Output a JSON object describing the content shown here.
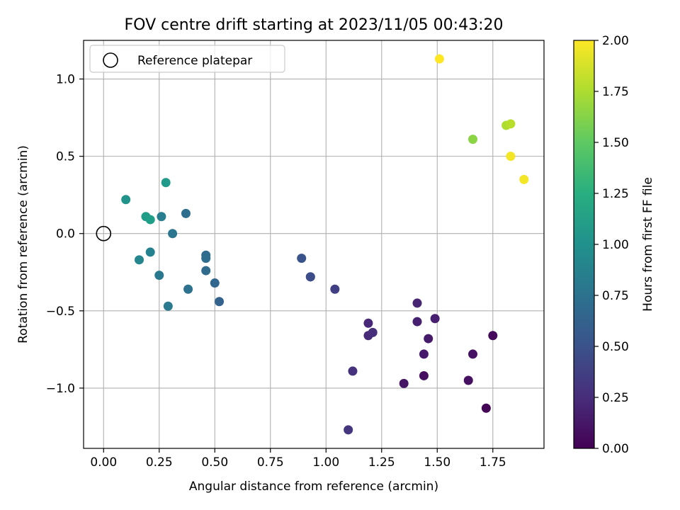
{
  "chart_data": {
    "type": "scatter",
    "title": "FOV centre drift starting at 2023/11/05 00:43:20",
    "xlabel": "Angular distance from reference (arcmin)",
    "ylabel": "Rotation from reference (arcmin)",
    "xlim": [
      -0.09,
      1.98
    ],
    "ylim": [
      -1.39,
      1.25
    ],
    "xticks": [
      0.0,
      0.25,
      0.5,
      0.75,
      1.0,
      1.25,
      1.5,
      1.75
    ],
    "xtick_labels": [
      "0.00",
      "0.25",
      "0.50",
      "0.75",
      "1.00",
      "1.25",
      "1.50",
      "1.75"
    ],
    "yticks": [
      -1.0,
      -0.5,
      0.0,
      0.5,
      1.0
    ],
    "ytick_labels": [
      "−1.0",
      "−0.5",
      "0.0",
      "0.5",
      "1.0"
    ],
    "grid": true,
    "legend": {
      "position": "top-left",
      "entries": [
        "Reference platepar"
      ]
    },
    "reference_point": {
      "x": 0.0,
      "y": 0.0
    },
    "colorbar": {
      "label": "Hours from first FF file",
      "colormap": "viridis",
      "range": [
        0.0,
        2.0
      ],
      "ticks": [
        0.0,
        0.25,
        0.5,
        0.75,
        1.0,
        1.25,
        1.5,
        1.75,
        2.0
      ],
      "tick_labels": [
        "0.00",
        "0.25",
        "0.50",
        "0.75",
        "1.00",
        "1.25",
        "1.50",
        "1.75",
        "2.00"
      ]
    },
    "points": [
      {
        "x": 1.72,
        "y": -1.13,
        "hours": 0.02
      },
      {
        "x": 1.75,
        "y": -0.66,
        "hours": 0.05
      },
      {
        "x": 1.44,
        "y": -0.92,
        "hours": 0.07
      },
      {
        "x": 1.64,
        "y": -0.95,
        "hours": 0.09
      },
      {
        "x": 1.66,
        "y": -0.78,
        "hours": 0.1
      },
      {
        "x": 1.35,
        "y": -0.97,
        "hours": 0.12
      },
      {
        "x": 1.44,
        "y": -0.78,
        "hours": 0.13
      },
      {
        "x": 1.46,
        "y": -0.68,
        "hours": 0.15
      },
      {
        "x": 1.49,
        "y": -0.55,
        "hours": 0.17
      },
      {
        "x": 1.41,
        "y": -0.57,
        "hours": 0.18
      },
      {
        "x": 1.41,
        "y": -0.45,
        "hours": 0.2
      },
      {
        "x": 1.19,
        "y": -0.58,
        "hours": 0.22
      },
      {
        "x": 1.19,
        "y": -0.66,
        "hours": 0.24
      },
      {
        "x": 1.21,
        "y": -0.64,
        "hours": 0.26
      },
      {
        "x": 1.12,
        "y": -0.89,
        "hours": 0.28
      },
      {
        "x": 1.1,
        "y": -1.27,
        "hours": 0.3
      },
      {
        "x": 1.04,
        "y": -0.36,
        "hours": 0.37
      },
      {
        "x": 0.93,
        "y": -0.28,
        "hours": 0.45
      },
      {
        "x": 0.93,
        "y": -0.28,
        "hours": 0.47
      },
      {
        "x": 0.89,
        "y": -0.16,
        "hours": 0.52
      },
      {
        "x": 0.52,
        "y": -0.44,
        "hours": 0.63
      },
      {
        "x": 0.5,
        "y": -0.32,
        "hours": 0.66
      },
      {
        "x": 0.46,
        "y": -0.24,
        "hours": 0.69
      },
      {
        "x": 0.46,
        "y": -0.14,
        "hours": 0.7
      },
      {
        "x": 0.46,
        "y": -0.16,
        "hours": 0.71
      },
      {
        "x": 0.37,
        "y": 0.13,
        "hours": 0.73
      },
      {
        "x": 0.38,
        "y": -0.36,
        "hours": 0.75
      },
      {
        "x": 0.31,
        "y": 0.0,
        "hours": 0.78
      },
      {
        "x": 0.25,
        "y": -0.27,
        "hours": 0.8
      },
      {
        "x": 0.29,
        "y": -0.47,
        "hours": 0.82
      },
      {
        "x": 0.26,
        "y": 0.11,
        "hours": 0.85
      },
      {
        "x": 0.21,
        "y": -0.12,
        "hours": 0.88
      },
      {
        "x": 0.16,
        "y": -0.17,
        "hours": 0.92
      },
      {
        "x": 0.1,
        "y": 0.22,
        "hours": 1.02
      },
      {
        "x": 0.28,
        "y": 0.33,
        "hours": 1.08
      },
      {
        "x": 0.19,
        "y": 0.11,
        "hours": 1.1
      },
      {
        "x": 0.21,
        "y": 0.09,
        "hours": 1.12
      },
      {
        "x": 1.66,
        "y": 0.61,
        "hours": 1.65
      },
      {
        "x": 1.81,
        "y": 0.7,
        "hours": 1.76
      },
      {
        "x": 1.83,
        "y": 0.71,
        "hours": 1.79
      },
      {
        "x": 1.83,
        "y": 0.5,
        "hours": 1.97
      },
      {
        "x": 1.89,
        "y": 0.35,
        "hours": 1.97
      },
      {
        "x": 1.51,
        "y": 1.13,
        "hours": 2.0
      }
    ]
  }
}
